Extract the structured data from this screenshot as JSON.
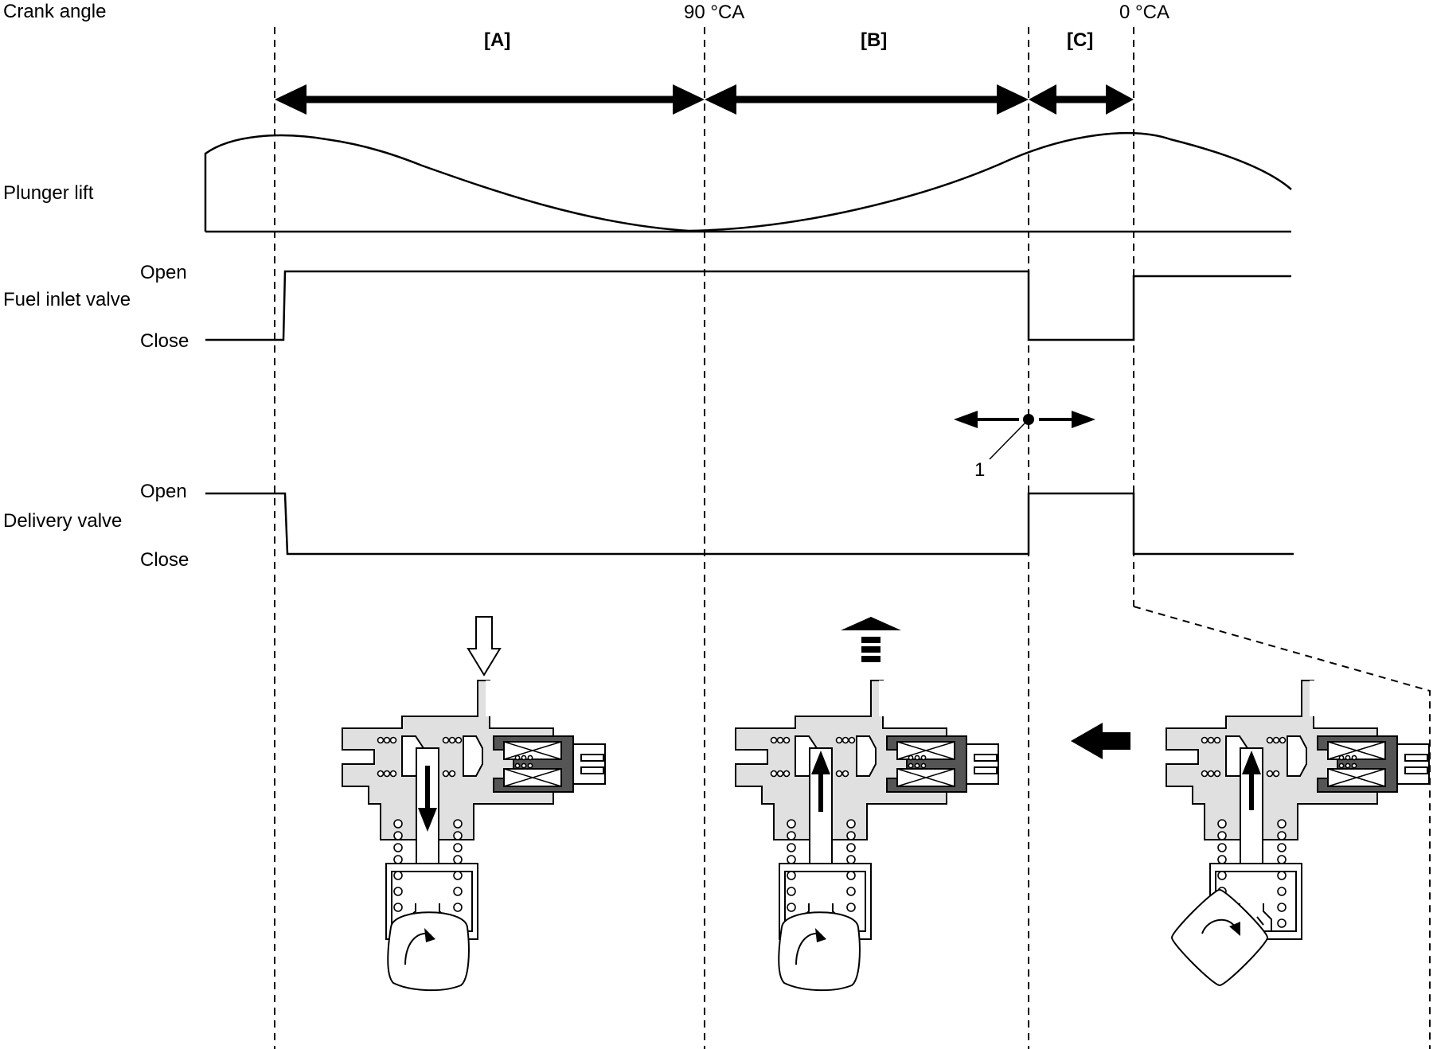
{
  "labels": {
    "crank_angle": "Crank angle",
    "plunger_lift": "Plunger lift",
    "fuel_inlet_valve": "Fuel inlet valve",
    "delivery_valve": "Delivery valve",
    "inlet_open": "Open",
    "inlet_close": "Close",
    "delivery_open": "Open",
    "delivery_close": "Close",
    "angle_90": "90 °CA",
    "angle_0": "0 °CA",
    "callout_1": "1"
  },
  "phases": {
    "a": "[A]",
    "b": "[B]",
    "c": "[C]"
  },
  "signals": {
    "fuel_inlet_valve": [
      "Close",
      "Open",
      "Close",
      "Open"
    ],
    "delivery_valve": [
      "Open",
      "Close",
      "Open",
      "Close"
    ]
  },
  "colors": {
    "line": "#000000",
    "pump_body": "#e0e0e0",
    "solenoid": "#555555"
  }
}
